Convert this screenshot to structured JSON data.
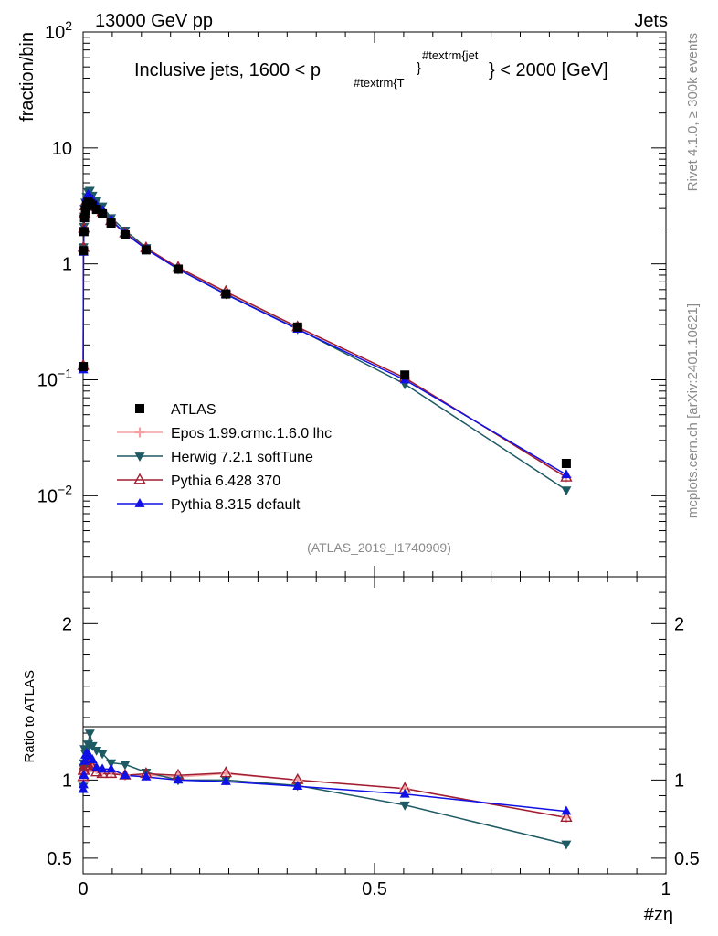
{
  "header": {
    "left": "13000 GeV pp",
    "right": "Jets"
  },
  "side": {
    "rivet": "Rivet 4.1.0, ≥ 300k events",
    "mcplots": "mcplots.cern.ch [arXiv:2401.10621]"
  },
  "chart_data": {
    "type": "line",
    "title": "Inclusive jets, 1600 < p_T^jet < 2000 [GeV]",
    "title_parts": {
      "pre": "Inclusive jets, 1600 < p",
      "sub": "#textrm{T",
      "brace": "}",
      "sup": "#textrm{jet",
      "post": "} < 2000 [GeV]"
    },
    "analysis_id": "(ATLAS_2019_I1740909)",
    "xlabel": "#zη",
    "ylabel": "fraction/bin",
    "ratio_ylabel": "Ratio to ATLAS",
    "xlim": [
      0,
      1
    ],
    "ylim": [
      0.002,
      100
    ],
    "yscale": "log",
    "ratio_ylim": [
      0.4,
      2.3
    ],
    "x_ticks": [
      {
        "v": 0,
        "label": "0"
      },
      {
        "v": 0.5,
        "label": "0.5"
      },
      {
        "v": 1,
        "label": "1"
      }
    ],
    "y_ticks": [
      {
        "v": 0.01,
        "base": "10",
        "exp": "−2"
      },
      {
        "v": 0.1,
        "base": "10",
        "exp": "−1"
      },
      {
        "v": 1,
        "base": "1",
        "exp": ""
      },
      {
        "v": 10,
        "base": "10",
        "exp": ""
      },
      {
        "v": 100,
        "base": "10",
        "exp": "2"
      }
    ],
    "ratio_ticks": [
      {
        "v": 0.5,
        "label": "0.5"
      },
      {
        "v": 1,
        "label": "1"
      },
      {
        "v": 2,
        "label": "2"
      }
    ],
    "x": [
      0.0002,
      0.0006,
      0.0014,
      0.0025,
      0.004,
      0.006,
      0.0085,
      0.0115,
      0.016,
      0.023,
      0.033,
      0.048,
      0.072,
      0.108,
      0.163,
      0.245,
      0.368,
      0.552,
      0.829
    ],
    "series": [
      {
        "name": "ATLAS",
        "color": "#000000",
        "marker": "square",
        "line": false,
        "values": [
          0.13,
          1.3,
          1.9,
          2.5,
          2.9,
          3.2,
          3.4,
          3.3,
          3.2,
          2.95,
          2.7,
          2.25,
          1.78,
          1.32,
          0.9,
          0.55,
          0.285,
          0.11,
          0.019
        ]
      },
      {
        "name": "Epos 1.99.crmc.1.6.0 lhc",
        "color": "#f4a0a0",
        "marker": "cross",
        "line": true,
        "values": [
          0.13,
          1.35,
          2.0,
          2.75,
          3.2,
          3.55,
          3.75,
          3.65,
          3.5,
          3.15,
          2.85,
          2.35,
          1.84,
          1.36,
          0.92,
          0.57,
          0.285,
          0.104,
          0.0145
        ]
      },
      {
        "name": "Herwig 7.2.1 softTune",
        "color": "#1e5a64",
        "marker": "triangle-down",
        "line": true,
        "values": [
          0.125,
          1.4,
          2.1,
          3.0,
          3.4,
          3.8,
          4.2,
          4.3,
          3.9,
          3.5,
          3.15,
          2.5,
          1.95,
          1.38,
          0.9,
          0.55,
          0.275,
          0.092,
          0.0112
        ]
      },
      {
        "name": "Pythia 6.428 370",
        "color": "#a01e32",
        "marker": "triangle-open",
        "line": true,
        "values": [
          0.132,
          1.38,
          2.02,
          2.72,
          3.15,
          3.5,
          3.7,
          3.58,
          3.45,
          3.1,
          2.8,
          2.35,
          1.84,
          1.37,
          0.93,
          0.575,
          0.285,
          0.104,
          0.0144
        ]
      },
      {
        "name": "Pythia 8.315 default",
        "color": "#1010e6",
        "marker": "triangle-up",
        "line": true,
        "values": [
          0.122,
          1.26,
          1.95,
          2.8,
          3.35,
          3.75,
          3.95,
          3.8,
          3.6,
          3.2,
          2.9,
          2.4,
          1.83,
          1.34,
          0.9,
          0.545,
          0.273,
          0.1,
          0.0152
        ]
      }
    ],
    "ratio_series": [
      {
        "name": "Epos 1.99.crmc.1.6.0 lhc",
        "values": [
          1.0,
          1.04,
          1.05,
          1.1,
          1.1,
          1.11,
          1.1,
          1.11,
          1.09,
          1.07,
          1.06,
          1.05,
          1.03,
          1.03,
          1.02,
          1.04,
          1.0,
          0.945,
          0.76
        ]
      },
      {
        "name": "Herwig 7.2.1 softTune",
        "values": [
          0.96,
          1.08,
          1.11,
          1.2,
          1.17,
          1.19,
          1.23,
          1.3,
          1.22,
          1.19,
          1.17,
          1.11,
          1.1,
          1.05,
          1.0,
          1.0,
          0.965,
          0.84,
          0.59
        ]
      },
      {
        "name": "Pythia 6.428 370",
        "values": [
          1.02,
          1.06,
          1.06,
          1.09,
          1.09,
          1.09,
          1.09,
          1.08,
          1.08,
          1.05,
          1.04,
          1.04,
          1.03,
          1.04,
          1.03,
          1.045,
          1.0,
          0.945,
          0.76
        ]
      },
      {
        "name": "Pythia 8.315 default",
        "values": [
          0.94,
          0.97,
          1.03,
          1.12,
          1.16,
          1.17,
          1.16,
          1.15,
          1.13,
          1.08,
          1.07,
          1.07,
          1.03,
          1.02,
          1.0,
          0.99,
          0.96,
          0.91,
          0.8
        ]
      }
    ]
  }
}
